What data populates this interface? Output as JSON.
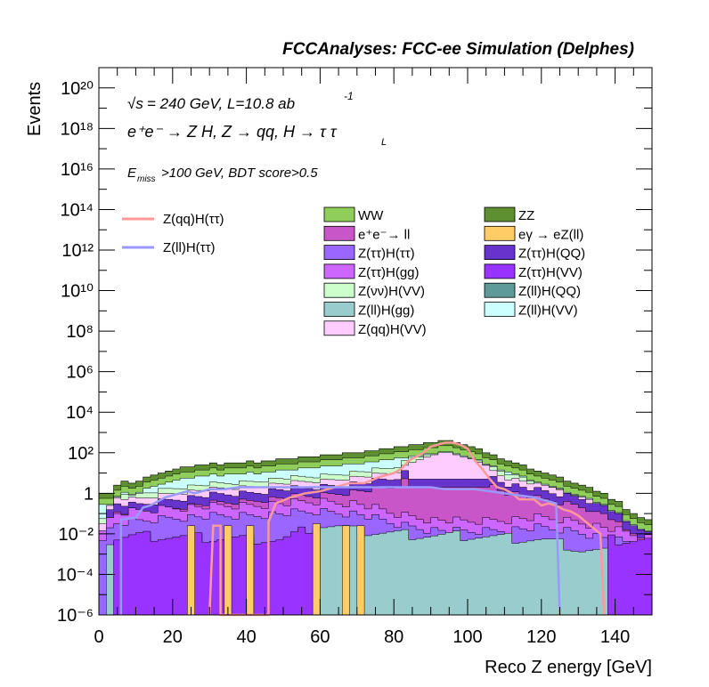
{
  "chart_data": {
    "type": "histogram",
    "title": "FCCAnalyses: FCC-ee Simulation (Delphes)",
    "annotations": {
      "sqrt_s": "= 240 GeV, L=10.8 ab",
      "sqrt_s_symbol": "√s",
      "lumi_exp": "-1",
      "process_line": "e⁺e⁻ → Z H, Z → qq, H → τ τ",
      "process_sub": "L",
      "cut_line_E": "E",
      "cut_line_sub": "miss",
      "cut_line_rest": ">100 GeV, BDT score>0.5"
    },
    "xlabel": "Reco Z energy [GeV]",
    "ylabel": "Events",
    "xlim": [
      0,
      150
    ],
    "ylim_log10": [
      -6,
      21
    ],
    "yscale": "log",
    "x_ticks": [
      0,
      20,
      40,
      60,
      80,
      100,
      120,
      140
    ],
    "x_tick_labels": [
      "0",
      "20",
      "40",
      "60",
      "80",
      "100",
      "120",
      "140"
    ],
    "y_ticks_exp": [
      -6,
      -4,
      -2,
      0,
      2,
      4,
      6,
      8,
      10,
      12,
      14,
      16,
      18,
      20
    ],
    "y_tick_labels": [
      "10⁻⁶",
      "10⁻⁴",
      "10⁻²",
      "1",
      "10²",
      "10⁴",
      "10⁶",
      "10⁸",
      "10¹⁰",
      "10¹²",
      "10¹⁴",
      "10¹⁶",
      "10¹⁸",
      "10²⁰"
    ],
    "stack_order_bottom_to_top": [
      "Z(ll)H(gg)",
      "Z(ττ)H(gg)",
      "Z(ττ)H(ττ)",
      "eγ → eZ(ll)",
      "Z(ττ)H(VV)",
      "Z(ττ)H(QQ)",
      "e⁺e⁻→ ll",
      "Z(qq)H(VV)",
      "Z(νν)H(VV)",
      "Z(ll)H(QQ)",
      "Z(ll)H(VV)",
      "WW",
      "ZZ"
    ],
    "stacked_series": [
      {
        "name": "WW",
        "color": "#8fce5a",
        "desc": "stack total at 0-50 GeV ~ 1-10 Events"
      },
      {
        "name": "ZZ",
        "color": "#5e8f30",
        "desc": "top layer, total rising to ~300 near 93 GeV"
      },
      {
        "name": "e⁺e⁻→ ll",
        "color": "#c856c8"
      },
      {
        "name": "eγ → eZ(ll)",
        "color": "#ffcc66"
      },
      {
        "name": "Z(ττ)H(ττ)",
        "color": "#9966ff"
      },
      {
        "name": "Z(ττ)H(QQ)",
        "color": "#6633cc"
      },
      {
        "name": "Z(ττ)H(gg)",
        "color": "#cc66ff"
      },
      {
        "name": "Z(ττ)H(VV)",
        "color": "#9933ff"
      },
      {
        "name": "Z(νν)H(VV)",
        "color": "#ccffcc"
      },
      {
        "name": "Z(ll)H(QQ)",
        "color": "#5f9a9a"
      },
      {
        "name": "Z(ll)H(gg)",
        "color": "#99cccc"
      },
      {
        "name": "Z(ll)H(VV)",
        "color": "#ccffff"
      },
      {
        "name": "Z(qq)H(VV)",
        "color": "#ffccff"
      }
    ],
    "stack_total_bins_log10": [
      [
        0,
        -6,
        0.0
      ],
      [
        2,
        0.0,
        0.0
      ],
      [
        4,
        0.0,
        0.4
      ],
      [
        6,
        0.4,
        0.6
      ],
      [
        8,
        0.6,
        0.5
      ],
      [
        10,
        0.5,
        0.6
      ],
      [
        12,
        0.6,
        0.8
      ],
      [
        14,
        0.8,
        0.9
      ],
      [
        16,
        0.9,
        1.0
      ],
      [
        18,
        1.0,
        1.1
      ],
      [
        20,
        1.1,
        1.2
      ],
      [
        22,
        1.2,
        1.3
      ],
      [
        24,
        1.3,
        1.3
      ],
      [
        26,
        1.3,
        1.4
      ],
      [
        28,
        1.4,
        1.4
      ],
      [
        30,
        1.4,
        1.5
      ],
      [
        32,
        1.5,
        1.4
      ],
      [
        34,
        1.4,
        1.5
      ],
      [
        36,
        1.5,
        1.5
      ],
      [
        38,
        1.5,
        1.5
      ],
      [
        40,
        1.5,
        1.6
      ],
      [
        42,
        1.6,
        1.5
      ],
      [
        44,
        1.5,
        1.6
      ],
      [
        46,
        1.6,
        1.6
      ],
      [
        48,
        1.6,
        1.7
      ],
      [
        50,
        1.7,
        1.7
      ],
      [
        52,
        1.7,
        1.7
      ],
      [
        54,
        1.7,
        1.8
      ],
      [
        56,
        1.8,
        1.8
      ],
      [
        58,
        1.8,
        1.8
      ],
      [
        60,
        1.8,
        1.9
      ],
      [
        62,
        1.9,
        1.9
      ],
      [
        64,
        1.9,
        1.9
      ],
      [
        66,
        1.9,
        2.0
      ],
      [
        68,
        2.0,
        2.0
      ],
      [
        70,
        2.0,
        2.0
      ],
      [
        72,
        2.0,
        2.1
      ],
      [
        74,
        2.1,
        2.1
      ],
      [
        76,
        2.1,
        2.2
      ],
      [
        78,
        2.2,
        2.2
      ],
      [
        80,
        2.2,
        2.3
      ],
      [
        82,
        2.3,
        2.3
      ],
      [
        84,
        2.3,
        2.4
      ],
      [
        86,
        2.4,
        2.4
      ],
      [
        88,
        2.4,
        2.5
      ],
      [
        90,
        2.5,
        2.5
      ],
      [
        92,
        2.5,
        2.6
      ],
      [
        94,
        2.6,
        2.6
      ],
      [
        96,
        2.6,
        2.5
      ],
      [
        98,
        2.5,
        2.4
      ],
      [
        100,
        2.4,
        2.3
      ],
      [
        102,
        2.3,
        2.2
      ],
      [
        104,
        2.2,
        2.0
      ],
      [
        106,
        2.0,
        1.9
      ],
      [
        108,
        1.9,
        1.7
      ],
      [
        110,
        1.7,
        1.6
      ],
      [
        112,
        1.6,
        1.5
      ],
      [
        114,
        1.5,
        1.4
      ],
      [
        116,
        1.4,
        1.2
      ],
      [
        118,
        1.2,
        1.1
      ],
      [
        120,
        1.1,
        1.0
      ],
      [
        122,
        1.0,
        0.9
      ],
      [
        124,
        0.9,
        0.8
      ],
      [
        126,
        0.8,
        0.6
      ],
      [
        128,
        0.6,
        0.5
      ],
      [
        130,
        0.5,
        0.4
      ],
      [
        132,
        0.4,
        0.3
      ],
      [
        134,
        0.3,
        0.1
      ],
      [
        136,
        0.1,
        0.0
      ],
      [
        138,
        0.0,
        -0.3
      ],
      [
        140,
        -0.3,
        -0.4
      ],
      [
        142,
        -0.4,
        -0.8
      ],
      [
        144,
        -0.8,
        -1.0
      ],
      [
        146,
        -1.0,
        -1.2
      ],
      [
        148,
        -1.2,
        -1.3
      ]
    ],
    "mid_layer_top_log10": [
      [
        0,
        -1.8
      ],
      [
        4,
        -0.2
      ],
      [
        10,
        -0.3
      ],
      [
        20,
        0.0
      ],
      [
        30,
        0.2
      ],
      [
        40,
        0.3
      ],
      [
        50,
        0.5
      ],
      [
        60,
        0.6
      ],
      [
        70,
        0.8
      ],
      [
        80,
        1.0
      ],
      [
        85,
        1.5
      ],
      [
        90,
        2.0
      ],
      [
        95,
        2.4
      ],
      [
        100,
        2.1
      ],
      [
        105,
        1.3
      ],
      [
        110,
        0.8
      ],
      [
        120,
        0.4
      ],
      [
        130,
        0.1
      ],
      [
        140,
        -0.4
      ],
      [
        148,
        -1.0
      ]
    ],
    "lower_layer_top_log10": [
      [
        0,
        -1.8
      ],
      [
        5,
        -1.0
      ],
      [
        20,
        -0.7
      ],
      [
        40,
        -0.6
      ],
      [
        60,
        -0.4
      ],
      [
        70,
        -0.5
      ],
      [
        80,
        -1.0
      ],
      [
        90,
        -1.3
      ],
      [
        100,
        -1.4
      ],
      [
        110,
        -1.3
      ],
      [
        120,
        -1.2
      ],
      [
        130,
        -1.4
      ],
      [
        140,
        -1.8
      ],
      [
        148,
        -2.2
      ]
    ],
    "bottom_layer_top_log10": [
      [
        0,
        -6
      ],
      [
        2,
        -2.4
      ],
      [
        10,
        -2.2
      ],
      [
        30,
        -2.3
      ],
      [
        50,
        -2.4
      ],
      [
        60,
        -1.6
      ],
      [
        66,
        -1.7
      ],
      [
        70,
        -1.9
      ],
      [
        80,
        -2.0
      ],
      [
        90,
        -2.1
      ],
      [
        100,
        -2.1
      ],
      [
        110,
        -2.2
      ],
      [
        120,
        -2.3
      ],
      [
        128,
        -2.6
      ],
      [
        130,
        -2.8
      ],
      [
        140,
        -2.9
      ],
      [
        150,
        -2.9
      ]
    ],
    "spikes": [
      {
        "x": 25,
        "color": "#ffcc66",
        "top_log10": -1.6
      },
      {
        "x": 35,
        "color": "#ffcc66",
        "top_log10": -1.6
      },
      {
        "x": 41,
        "color": "#ffcc66",
        "top_log10": -1.6
      },
      {
        "x": 59,
        "color": "#ffcc66",
        "top_log10": -1.5
      },
      {
        "x": 67,
        "color": "#ffcc66",
        "top_log10": -1.6
      },
      {
        "x": 71,
        "color": "#ffcc66",
        "top_log10": -1.6
      }
    ],
    "overlay_series": [
      {
        "name": "Z(qq)H(ττ)",
        "color": "#ff9999",
        "points_log10": [
          [
            30,
            -6
          ],
          [
            31,
            -1.6
          ],
          [
            33,
            -1.6
          ],
          [
            33,
            -6
          ],
          [
            46,
            -6
          ],
          [
            46,
            -1.4
          ],
          [
            48,
            -0.5
          ],
          [
            52,
            -0.2
          ],
          [
            56,
            0.0
          ],
          [
            60,
            0.1
          ],
          [
            64,
            0.3
          ],
          [
            68,
            0.5
          ],
          [
            72,
            0.5
          ],
          [
            76,
            0.8
          ],
          [
            80,
            1.0
          ],
          [
            82,
            1.2
          ],
          [
            84,
            1.6
          ],
          [
            86,
            1.8
          ],
          [
            88,
            2.0
          ],
          [
            90,
            2.3
          ],
          [
            92,
            2.4
          ],
          [
            94,
            2.5
          ],
          [
            96,
            2.5
          ],
          [
            98,
            2.4
          ],
          [
            100,
            2.2
          ],
          [
            102,
            1.6
          ],
          [
            104,
            1.2
          ],
          [
            106,
            0.7
          ],
          [
            108,
            0.3
          ],
          [
            110,
            0.2
          ],
          [
            112,
            0.0
          ],
          [
            114,
            -0.3
          ],
          [
            116,
            -0.3
          ],
          [
            118,
            -0.3
          ],
          [
            120,
            -0.6
          ],
          [
            122,
            -0.5
          ],
          [
            124,
            -0.6
          ],
          [
            126,
            -0.8
          ],
          [
            128,
            -0.9
          ],
          [
            130,
            -1.1
          ],
          [
            132,
            -1.4
          ],
          [
            134,
            -1.7
          ],
          [
            136,
            -2.0
          ],
          [
            137,
            -6
          ]
        ]
      },
      {
        "name": "Z(ll)H(ττ)",
        "color": "#9999ff",
        "points_log10": [
          [
            6,
            -6
          ],
          [
            6,
            -1.3
          ],
          [
            10,
            -1.2
          ],
          [
            12,
            -0.7
          ],
          [
            14,
            -0.6
          ],
          [
            16,
            -0.4
          ],
          [
            18,
            -0.2
          ],
          [
            20,
            -0.1
          ],
          [
            22,
            0.0
          ],
          [
            24,
            0.1
          ],
          [
            26,
            0.0
          ],
          [
            28,
            0.1
          ],
          [
            30,
            0.2
          ],
          [
            34,
            0.2
          ],
          [
            38,
            0.3
          ],
          [
            42,
            0.3
          ],
          [
            46,
            0.3
          ],
          [
            50,
            0.3
          ],
          [
            54,
            0.3
          ],
          [
            58,
            0.3
          ],
          [
            62,
            0.3
          ],
          [
            66,
            0.3
          ],
          [
            70,
            0.3
          ],
          [
            74,
            0.3
          ],
          [
            78,
            0.3
          ],
          [
            82,
            0.3
          ],
          [
            86,
            0.3
          ],
          [
            90,
            0.3
          ],
          [
            94,
            0.2
          ],
          [
            98,
            0.2
          ],
          [
            102,
            0.2
          ],
          [
            106,
            0.1
          ],
          [
            110,
            0.0
          ],
          [
            114,
            -0.1
          ],
          [
            118,
            -0.2
          ],
          [
            122,
            -0.4
          ],
          [
            124,
            -0.5
          ],
          [
            125,
            -6
          ]
        ]
      }
    ],
    "legend_left": [
      {
        "name": "Z(qq)H(ττ)",
        "color": "#ff9999"
      },
      {
        "name": "Z(ll)H(ττ)",
        "color": "#9999ff"
      }
    ],
    "legend_right_cols": [
      [
        {
          "name": "WW",
          "color": "#8fce5a"
        },
        {
          "name": "e⁺e⁻→ ll",
          "color": "#c856c8"
        },
        {
          "name": "Z(ττ)H(ττ)",
          "color": "#9966ff"
        },
        {
          "name": "Z(ττ)H(gg)",
          "color": "#cc66ff"
        },
        {
          "name": "Z(νν)H(VV)",
          "color": "#ccffcc"
        },
        {
          "name": "Z(ll)H(gg)",
          "color": "#99cccc"
        },
        {
          "name": "Z(qq)H(VV)",
          "color": "#ffccff"
        }
      ],
      [
        {
          "name": "ZZ",
          "color": "#5e8f30"
        },
        {
          "name": "eγ → eZ(ll)",
          "color": "#ffcc66"
        },
        {
          "name": "Z(ττ)H(QQ)",
          "color": "#6633cc"
        },
        {
          "name": "Z(ττ)H(VV)",
          "color": "#9933ff"
        },
        {
          "name": "Z(ll)H(QQ)",
          "color": "#5f9a9a"
        },
        {
          "name": "Z(ll)H(VV)",
          "color": "#ccffff"
        }
      ]
    ]
  }
}
